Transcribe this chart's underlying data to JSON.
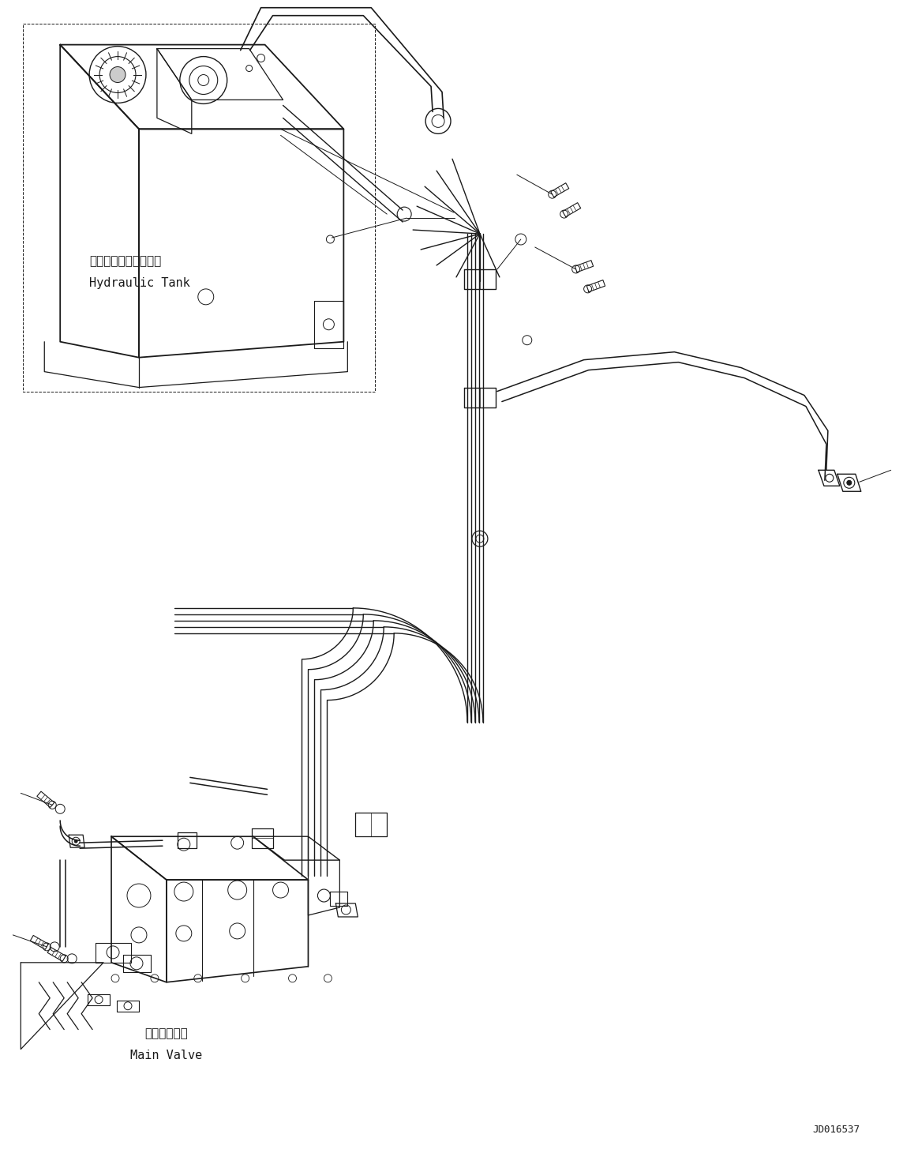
{
  "bg": "#ffffff",
  "lc": "#1a1a1a",
  "code": "JD016537",
  "label_tank_jp": "ハイドロリックタンク",
  "label_tank_en": "Hydraulic Tank",
  "label_valve_jp": "メインバルブ",
  "label_valve_en": "Main Valve",
  "fig_w": 11.63,
  "fig_h": 14.6,
  "dpi": 100
}
